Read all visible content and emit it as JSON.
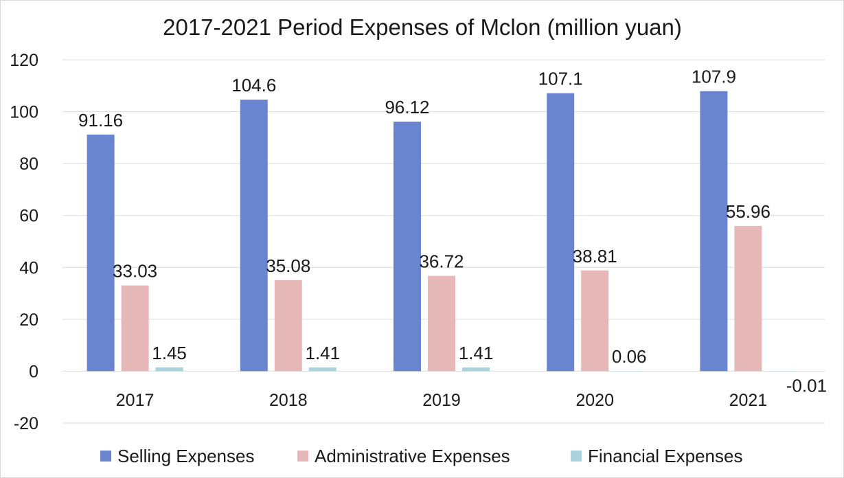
{
  "chart_data": {
    "type": "bar",
    "title": "2017-2021 Period Expenses of Mclon (million yuan)",
    "xlabel": "",
    "ylabel": "",
    "categories": [
      "2017",
      "2018",
      "2019",
      "2020",
      "2021"
    ],
    "ylim": [
      -20,
      120
    ],
    "yticks": [
      -20,
      0,
      20,
      40,
      60,
      80,
      100,
      120
    ],
    "grid": true,
    "legend_position": "bottom",
    "series": [
      {
        "name": "Selling Expenses",
        "color": "#6a85d0",
        "values": [
          91.16,
          104.6,
          96.12,
          107.1,
          107.9
        ],
        "labels": [
          "91.16",
          "104.6",
          "96.12",
          "107.1",
          "107.9"
        ]
      },
      {
        "name": "Administrative Expenses",
        "color": "#e6b8b7",
        "values": [
          33.03,
          35.08,
          36.72,
          38.81,
          55.96
        ],
        "labels": [
          "33.03",
          "35.08",
          "36.72",
          "38.81",
          "55.96"
        ]
      },
      {
        "name": "Financial Expenses",
        "color": "#a9d3df",
        "values": [
          1.45,
          1.41,
          1.41,
          0.06,
          -0.01
        ],
        "labels": [
          "1.45",
          "1.41",
          "1.41",
          "0.06",
          "-0.01"
        ]
      }
    ]
  }
}
